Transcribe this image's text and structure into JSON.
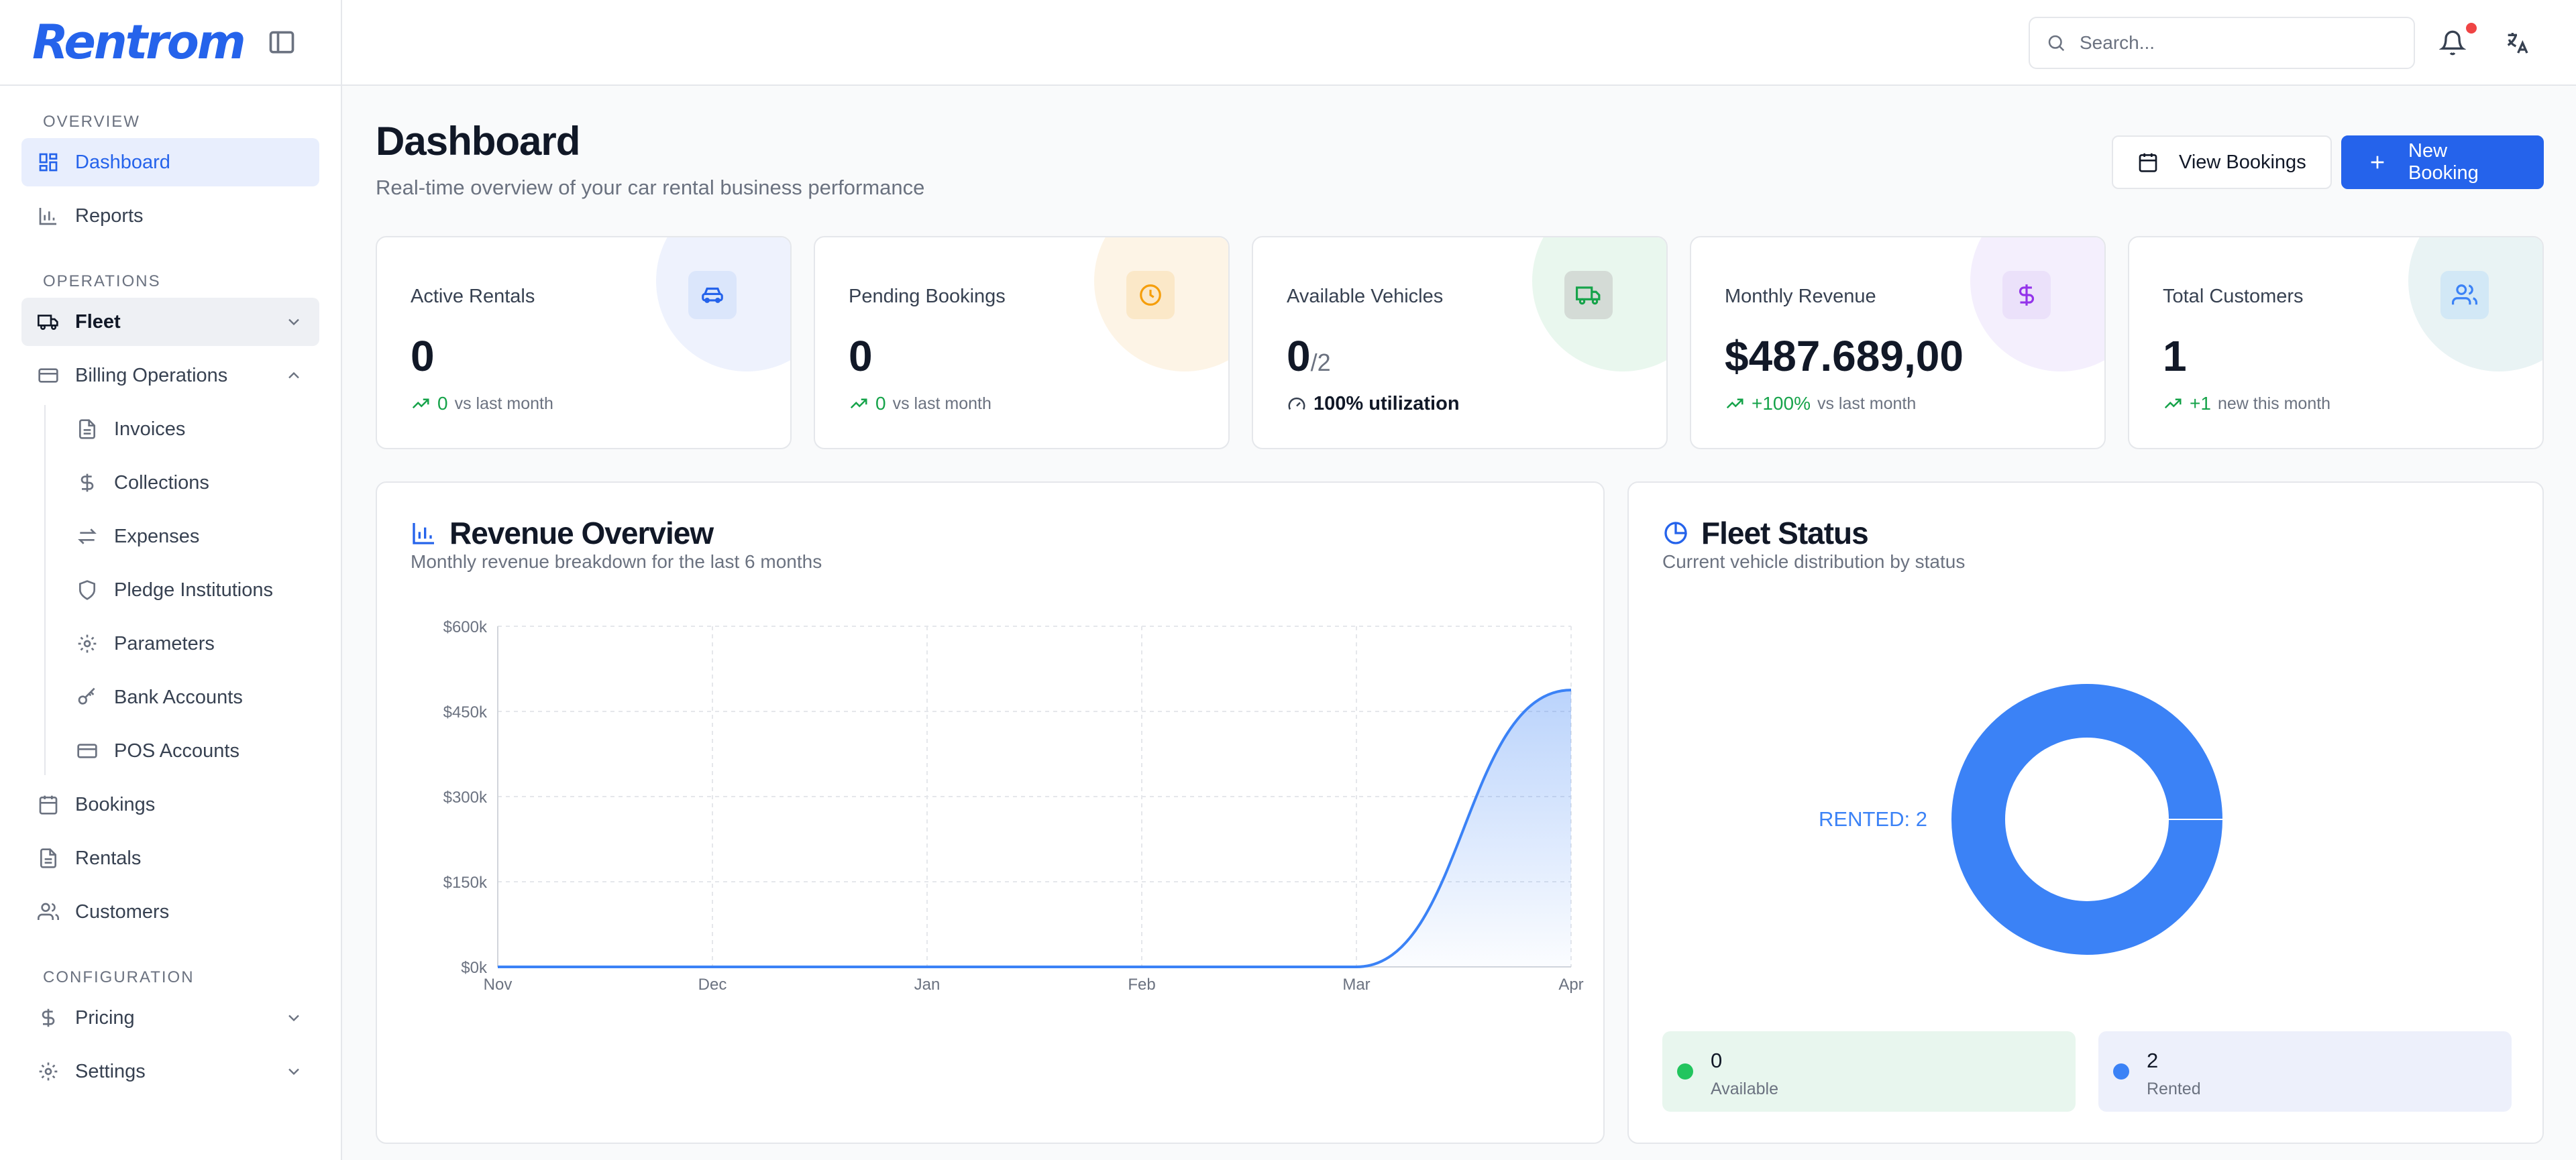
{
  "brand": {
    "name": "Rentrom"
  },
  "sidebar": {
    "sections": [
      {
        "label": "OVERVIEW",
        "items": [
          {
            "label": "Dashboard",
            "icon": "dashboard-icon"
          },
          {
            "label": "Reports",
            "icon": "bar-chart-icon"
          }
        ]
      },
      {
        "label": "OPERATIONS",
        "items": [
          {
            "label": "Fleet",
            "icon": "truck-icon"
          },
          {
            "label": "Billing Operations",
            "icon": "credit-card-icon",
            "children": [
              {
                "label": "Invoices",
                "icon": "file-text-icon"
              },
              {
                "label": "Collections",
                "icon": "dollar-icon"
              },
              {
                "label": "Expenses",
                "icon": "arrows-exchange-icon"
              },
              {
                "label": "Pledge Institutions",
                "icon": "shield-icon"
              },
              {
                "label": "Parameters",
                "icon": "gear-icon"
              },
              {
                "label": "Bank Accounts",
                "icon": "key-icon"
              },
              {
                "label": "POS Accounts",
                "icon": "credit-card-icon"
              }
            ]
          },
          {
            "label": "Bookings",
            "icon": "calendar-icon"
          },
          {
            "label": "Rentals",
            "icon": "file-text-icon"
          },
          {
            "label": "Customers",
            "icon": "users-icon"
          }
        ]
      },
      {
        "label": "CONFIGURATION",
        "items": [
          {
            "label": "Pricing",
            "icon": "dollar-icon"
          },
          {
            "label": "Settings",
            "icon": "gear-icon"
          }
        ]
      }
    ]
  },
  "topbar": {
    "search_placeholder": "Search..."
  },
  "page": {
    "title": "Dashboard",
    "subtitle": "Real-time overview of your car rental business performance",
    "view_bookings_label": "View Bookings",
    "new_booking_label": "New Booking"
  },
  "stats": [
    {
      "label": "Active Rentals",
      "value": "0",
      "trend_value": "0",
      "trend_text": "vs last month",
      "accent": "#2563eb"
    },
    {
      "label": "Pending Bookings",
      "value": "0",
      "trend_value": "0",
      "trend_text": "vs last month",
      "accent": "#f59e0b"
    },
    {
      "label": "Available Vehicles",
      "value": "0",
      "value_suffix": "/2",
      "trend_text": "100% utilization",
      "accent": "#16a34a"
    },
    {
      "label": "Monthly Revenue",
      "value": "$487.689,00",
      "trend_value": "+100%",
      "trend_text": "vs last month",
      "accent": "#9333ea"
    },
    {
      "label": "Total Customers",
      "value": "1",
      "trend_value": "+1",
      "trend_text": "new this month",
      "accent": "#3b82f6"
    }
  ],
  "revenue": {
    "title": "Revenue Overview",
    "subtitle": "Monthly revenue breakdown for the last 6 months",
    "chart_data": {
      "type": "area",
      "x": [
        "Nov",
        "Dec",
        "Jan",
        "Feb",
        "Mar",
        "Apr"
      ],
      "values": [
        0,
        0,
        0,
        0,
        0,
        487689
      ],
      "yticks": [
        "$0k",
        "$150k",
        "$300k",
        "$450k",
        "$600k"
      ],
      "ylim": [
        0,
        600000
      ],
      "grid": true,
      "color": "#3b82f6"
    }
  },
  "fleet": {
    "title": "Fleet Status",
    "subtitle": "Current vehicle distribution by status",
    "chart_data": {
      "type": "pie",
      "categories": [
        "Available",
        "Rented"
      ],
      "values": [
        0,
        2
      ],
      "colors": [
        "#22c55e",
        "#3b82f6"
      ],
      "annotation": "RENTED: 2"
    },
    "legend": [
      {
        "value": "0",
        "label": "Available",
        "color": "#22c55e",
        "bg": "#e8f6ee"
      },
      {
        "value": "2",
        "label": "Rented",
        "color": "#3b82f6",
        "bg": "#edf0fb"
      }
    ]
  }
}
